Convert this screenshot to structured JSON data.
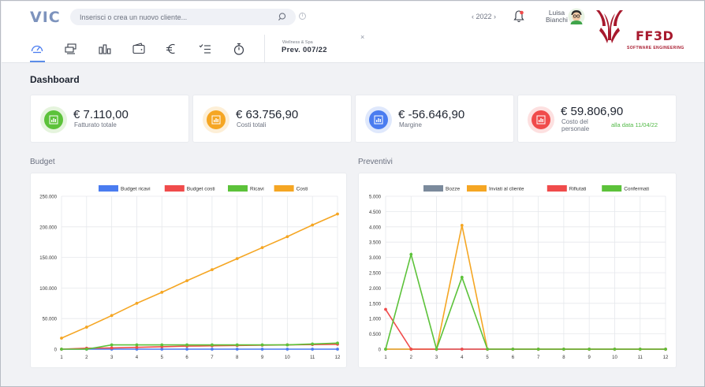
{
  "app": {
    "logo_text": "VIC"
  },
  "search": {
    "placeholder": "Inserisci o crea un nuovo cliente..."
  },
  "header": {
    "year": "‹ 2022 ›",
    "user_first": "Luisa",
    "user_last": "Bianchi",
    "brand_name": "FF3D",
    "brand_sub": "SOFTWARE ENGINEERING"
  },
  "nav": {
    "icons": [
      "gauge-icon",
      "layers-icon",
      "bar-chart-icon",
      "wallet-icon",
      "euro-icon",
      "checklist-icon",
      "stopwatch-icon"
    ]
  },
  "quote": {
    "subtitle": "Wellness & Spa",
    "title": "Prev. 007/22",
    "close": "×"
  },
  "dashboard": {
    "title": "Dashboard"
  },
  "kpis": [
    {
      "value": "€ 7.110,00",
      "label": "Fatturato totale",
      "color": "#5cc23a"
    },
    {
      "value": "€ 63.756,90",
      "label": "Costi totali",
      "color": "#f5a623"
    },
    {
      "value": "€ -56.646,90",
      "label": "Margine",
      "color": "#4a7cf0"
    },
    {
      "value": "€ 59.806,90",
      "label_line1": "Costo del",
      "label_line2": "personale",
      "date": "alla data 11/04/22",
      "color": "#f04b4b"
    }
  ],
  "sections": {
    "budget": "Budget",
    "preventivi": "Preventivi"
  },
  "chart_data": [
    {
      "type": "line",
      "categories": [
        "1",
        "2",
        "3",
        "4",
        "5",
        "6",
        "7",
        "8",
        "9",
        "10",
        "11",
        "12"
      ],
      "ylim": [
        0,
        250000
      ],
      "yticks": [
        "0",
        "50.000",
        "100.000",
        "150.000",
        "200.000",
        "250.000"
      ],
      "grid": true,
      "legend": "top",
      "series": [
        {
          "name": "Budget ricavi",
          "color": "#4a7cf0",
          "values": [
            0,
            0,
            0,
            0,
            0,
            0,
            0,
            0,
            0,
            0,
            0,
            0
          ]
        },
        {
          "name": "Budget costi",
          "color": "#f04b4b",
          "values": [
            0,
            1500,
            2000,
            3000,
            4000,
            5000,
            5500,
            6000,
            6500,
            7000,
            7500,
            8000
          ]
        },
        {
          "name": "Ricavi",
          "color": "#5cc23a",
          "values": [
            0,
            0,
            7000,
            7000,
            7000,
            7000,
            7000,
            7000,
            7000,
            7000,
            8500,
            10000
          ]
        },
        {
          "name": "Costi",
          "color": "#f5a623",
          "values": [
            18000,
            36000,
            55000,
            75000,
            93000,
            112000,
            130000,
            148000,
            166000,
            184000,
            203000,
            221000
          ]
        }
      ]
    },
    {
      "type": "line",
      "categories": [
        "1",
        "2",
        "3",
        "4",
        "5",
        "6",
        "7",
        "8",
        "9",
        "10",
        "11",
        "12"
      ],
      "ylim": [
        0,
        5
      ],
      "yticks": [
        "0",
        "0.500",
        "1.000",
        "1.500",
        "2.000",
        "2.500",
        "3.000",
        "3.500",
        "4.000",
        "4.500",
        "5.000"
      ],
      "grid": true,
      "legend": "top",
      "series": [
        {
          "name": "Bozze",
          "color": "#7b8a9c",
          "values": [
            0,
            0,
            0,
            0,
            0,
            0,
            0,
            0,
            0,
            0,
            0,
            0
          ]
        },
        {
          "name": "Inviati al cliente",
          "color": "#f5a623",
          "values": [
            0,
            0,
            0,
            4.05,
            0,
            0,
            0,
            0,
            0,
            0,
            0,
            0
          ]
        },
        {
          "name": "Rifiutati",
          "color": "#f04b4b",
          "values": [
            1.3,
            0,
            0,
            0,
            0,
            0,
            0,
            0,
            0,
            0,
            0,
            0
          ]
        },
        {
          "name": "Confermati",
          "color": "#5cc23a",
          "values": [
            0,
            3.1,
            0,
            2.35,
            0,
            0,
            0,
            0,
            0,
            0,
            0,
            0
          ]
        }
      ]
    }
  ]
}
